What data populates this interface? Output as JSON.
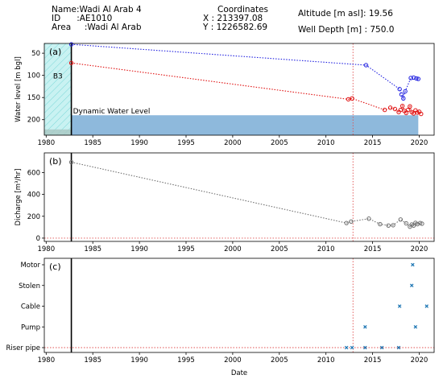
{
  "header": {
    "name_line": "Name:Wadi Al Arab 4",
    "id_line": "ID      :AE1010",
    "area_line": "Area     :Wadi Al Arab",
    "coords_title": "Coordinates",
    "x_line": "X : 213397.08",
    "y_line": "Y : 1226582.69",
    "altitude_line": "Altitude [m asl]: 19.56",
    "depth_line": "Well Depth [m] : 750.0"
  },
  "chart_data": [
    {
      "type": "line",
      "panel_label": "(a)",
      "ylabel": "Water level [m bgl]",
      "xlim": [
        1979.8,
        2021.6
      ],
      "ylim": [
        235,
        28
      ],
      "y_inverted": true,
      "yticks": [
        50,
        100,
        150,
        200
      ],
      "xticks": [
        1980,
        1985,
        1990,
        1995,
        2000,
        2005,
        2010,
        2015,
        2020
      ],
      "grid": false,
      "shaded_region": {
        "label": "B3",
        "x": [
          1979.8,
          1982.7
        ],
        "y": [
          28,
          235
        ],
        "color": "#c9f2f2",
        "hatch": "diagonal"
      },
      "dynamic_water_level": {
        "label": "Dynamic Water Level",
        "y_top": 190,
        "y_bottom": 235,
        "x": [
          1982.7,
          2019.9
        ],
        "color": "#8eb9dc"
      },
      "vertical_lines": [
        {
          "x": 1982.7,
          "color": "#000000",
          "style": "solid"
        },
        {
          "x": 2012.9,
          "color": "#e05050",
          "style": "dotted"
        }
      ],
      "series": [
        {
          "color": "#2020e0",
          "marker": "circle",
          "points": [
            [
              1982.7,
              30
            ],
            [
              2014.3,
              77
            ],
            [
              2017.9,
              131
            ],
            [
              2018.1,
              143
            ],
            [
              2018.3,
              152
            ],
            [
              2018.5,
              136
            ],
            [
              2019.1,
              106
            ],
            [
              2019.4,
              105
            ],
            [
              2019.7,
              107
            ],
            [
              2019.9,
              108
            ]
          ]
        },
        {
          "color": "#e01010",
          "marker": "circle",
          "points": [
            [
              1982.7,
              72
            ],
            [
              2012.4,
              154
            ],
            [
              2012.8,
              152
            ],
            [
              2016.3,
              178
            ],
            [
              2016.9,
              173
            ],
            [
              2017.4,
              176
            ],
            [
              2017.8,
              183
            ],
            [
              2018.0,
              178
            ],
            [
              2018.2,
              169
            ],
            [
              2018.4,
              180
            ],
            [
              2018.6,
              185
            ],
            [
              2018.8,
              178
            ],
            [
              2019.0,
              170
            ],
            [
              2019.2,
              183
            ],
            [
              2019.4,
              186
            ],
            [
              2019.6,
              179
            ],
            [
              2019.8,
              184
            ],
            [
              2020.0,
              182
            ],
            [
              2020.2,
              187
            ]
          ]
        }
      ]
    },
    {
      "type": "line",
      "panel_label": "(b)",
      "ylabel": "Dicharge [m³/hr]",
      "xlim": [
        1979.8,
        2021.6
      ],
      "ylim": [
        -30,
        780
      ],
      "yticks": [
        0,
        200,
        400,
        600
      ],
      "xticks": [
        1980,
        1985,
        1990,
        1995,
        2000,
        2005,
        2010,
        2015,
        2020
      ],
      "grid": false,
      "vertical_lines": [
        {
          "x": 1982.7,
          "color": "#000000",
          "style": "solid"
        },
        {
          "x": 2012.9,
          "color": "#e05050",
          "style": "dotted"
        }
      ],
      "horizontal_lines": [
        {
          "y": 0,
          "color": "#e05050",
          "style": "dotted"
        }
      ],
      "series": [
        {
          "color": "#707070",
          "marker": "circle",
          "points": [
            [
              1982.7,
              695
            ],
            [
              2012.2,
              138
            ],
            [
              2012.7,
              152
            ],
            [
              2014.6,
              178
            ],
            [
              2015.8,
              128
            ],
            [
              2016.7,
              115
            ],
            [
              2017.2,
              118
            ],
            [
              2018.0,
              170
            ],
            [
              2018.6,
              135
            ],
            [
              2019.0,
              105
            ],
            [
              2019.2,
              125
            ],
            [
              2019.4,
              115
            ],
            [
              2019.6,
              140
            ],
            [
              2019.8,
              128
            ],
            [
              2020.1,
              138
            ],
            [
              2020.3,
              132
            ]
          ]
        }
      ]
    },
    {
      "type": "scatter",
      "panel_label": "(c)",
      "xlabel": "Date",
      "xlim": [
        1979.8,
        2021.6
      ],
      "categories": [
        "Riser pipe",
        "Pump",
        "Cable",
        "Stolen",
        "Motor"
      ],
      "xticks": [
        1980,
        1985,
        1990,
        1995,
        2000,
        2005,
        2010,
        2015,
        2020
      ],
      "grid": false,
      "vertical_lines": [
        {
          "x": 1982.7,
          "color": "#000000",
          "style": "solid"
        },
        {
          "x": 2012.9,
          "color": "#e05050",
          "style": "dotted"
        }
      ],
      "horizontal_lines": [
        {
          "category": "Riser pipe",
          "color": "#e05050",
          "style": "dotted"
        }
      ],
      "series": [
        {
          "color": "#1f77b4",
          "marker": "x",
          "points": [
            [
              2012.2,
              "Riser pipe"
            ],
            [
              2012.8,
              "Riser pipe"
            ],
            [
              2014.2,
              "Riser pipe"
            ],
            [
              2016.0,
              "Riser pipe"
            ],
            [
              2017.8,
              "Riser pipe"
            ],
            [
              2014.2,
              "Pump"
            ],
            [
              2019.6,
              "Pump"
            ],
            [
              2017.9,
              "Cable"
            ],
            [
              2020.8,
              "Cable"
            ],
            [
              2019.2,
              "Stolen"
            ],
            [
              2019.3,
              "Motor"
            ]
          ]
        }
      ]
    }
  ]
}
